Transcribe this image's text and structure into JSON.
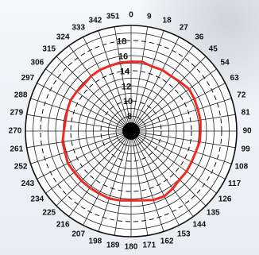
{
  "chart_data": {
    "type": "line",
    "subtype": "polar",
    "title": "",
    "angle_labels": [
      "0",
      "9",
      "18",
      "27",
      "36",
      "45",
      "54",
      "63",
      "72",
      "81",
      "90",
      "99",
      "108",
      "117",
      "126",
      "135",
      "144",
      "153",
      "162",
      "171",
      "180",
      "189",
      "198",
      "207",
      "216",
      "225",
      "234",
      "243",
      "252",
      "261",
      "270",
      "279",
      "288",
      "297",
      "306",
      "315",
      "324",
      "333",
      "342",
      "351"
    ],
    "radial_labels": [
      "8",
      "10",
      "12",
      "14",
      "16",
      "18"
    ],
    "rlim": [
      6,
      20
    ],
    "dashed_rings": [
      10,
      14,
      18
    ],
    "angles": [
      0,
      9,
      18,
      27,
      36,
      45,
      54,
      63,
      72,
      81,
      90,
      99,
      108,
      117,
      126,
      135,
      144,
      153,
      162,
      171,
      180,
      189,
      198,
      207,
      216,
      225,
      234,
      243,
      252,
      261,
      270,
      279,
      288,
      297,
      306,
      315,
      324,
      333,
      342,
      351
    ],
    "series": [
      {
        "color": "#ee2a24",
        "values": [
          15.2,
          15.3,
          15.0,
          15.1,
          15.0,
          15.2,
          15.5,
          15.4,
          15.3,
          15.3,
          15.2,
          15.2,
          15.0,
          15.0,
          15.1,
          15.1,
          15.4,
          15.7,
          15.6,
          15.3,
          15.2,
          15.3,
          15.4,
          15.3,
          15.3,
          15.3,
          15.3,
          15.4,
          15.2,
          15.2,
          14.9,
          14.8,
          14.9,
          15.0,
          14.9,
          14.8,
          15.0,
          15.1,
          15.1,
          15.2
        ]
      }
    ],
    "grid": true
  }
}
